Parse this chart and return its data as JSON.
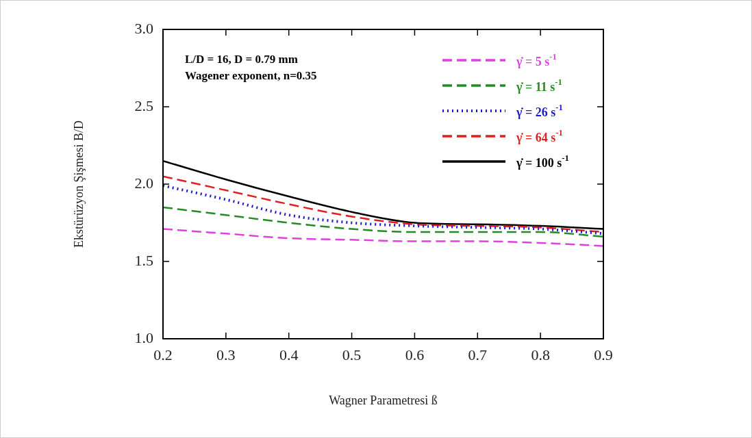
{
  "chart_data": {
    "type": "line",
    "xlabel": "Wagner Parametresi ß",
    "ylabel": "Ekstürüzyon Şişmesi B/D",
    "x": [
      0.2,
      0.3,
      0.4,
      0.5,
      0.6,
      0.7,
      0.8,
      0.9
    ],
    "xlim": [
      0.2,
      0.9
    ],
    "xticks": [
      0.2,
      0.3,
      0.4,
      0.5,
      0.6,
      0.7,
      0.8,
      0.9
    ],
    "ylim": [
      1.0,
      3.0
    ],
    "yticks": [
      {
        "value": 1.0,
        "label": "1.0"
      },
      {
        "value": 1.5,
        "label": "1.5"
      },
      {
        "value": 2.0,
        "label": "2.0"
      },
      {
        "value": 2.5,
        "label": "2.5"
      },
      {
        "value": 3.0,
        "label": "3.0"
      }
    ],
    "grid": false,
    "legend": "top right",
    "marker": "none",
    "annotations": [
      "L/D = 16, D = 0.79 mm",
      "Wagener exponent, n=0.35"
    ],
    "series": [
      {
        "name": "γ̇ = 5 s$^{-1}$",
        "color": "#e040e0",
        "line_style": "dashed",
        "values": [
          1.71,
          1.68,
          1.65,
          1.64,
          1.63,
          1.63,
          1.62,
          1.6
        ]
      },
      {
        "name": "γ̇ = 11 s$^{-1}$",
        "color": "#228b22",
        "line_style": "dashed",
        "values": [
          1.85,
          1.8,
          1.75,
          1.71,
          1.69,
          1.69,
          1.69,
          1.66
        ]
      },
      {
        "name": "γ̇ = 26 s$^{-1}$",
        "color": "#1a1acc",
        "line_style": "dotted",
        "values": [
          1.99,
          1.9,
          1.8,
          1.75,
          1.73,
          1.72,
          1.71,
          1.68
        ]
      },
      {
        "name": "γ̇ = 64 s$^{-1}$",
        "color": "#e02020",
        "line_style": "dashed",
        "values": [
          2.05,
          1.96,
          1.87,
          1.79,
          1.74,
          1.73,
          1.72,
          1.69
        ]
      },
      {
        "name": "γ̇ = 100 s$^{-1}$",
        "color": "#000000",
        "line_style": "solid",
        "values": [
          2.15,
          2.03,
          1.92,
          1.82,
          1.75,
          1.74,
          1.73,
          1.71
        ]
      }
    ]
  }
}
